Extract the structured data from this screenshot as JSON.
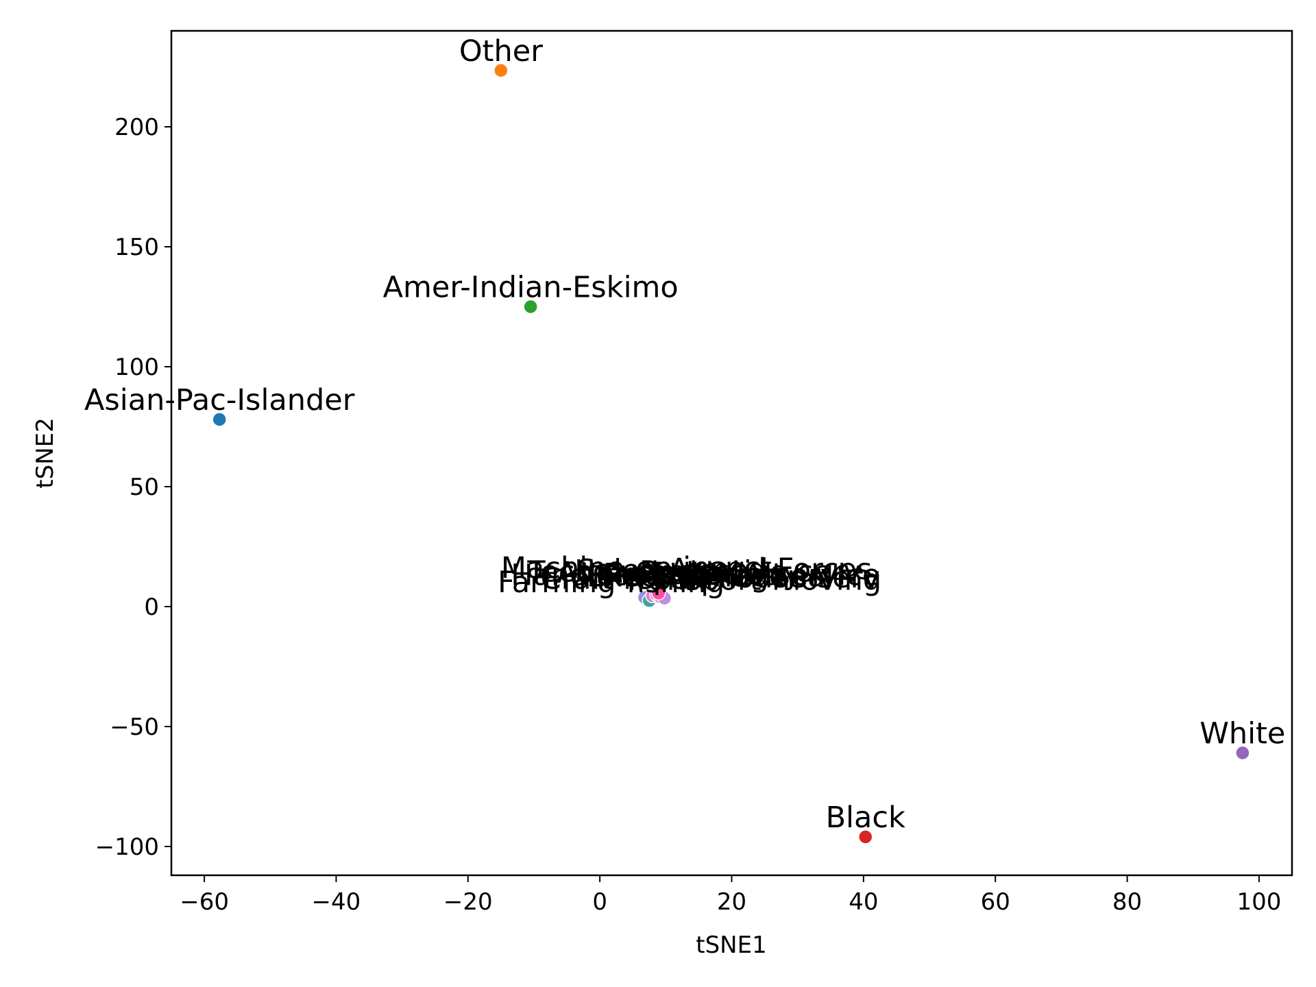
{
  "chart_data": {
    "type": "scatter",
    "title": "",
    "xlabel": "tSNE1",
    "ylabel": "tSNE2",
    "xlim": [
      -65,
      105
    ],
    "ylim": [
      -112,
      240
    ],
    "xticks": [
      -60,
      -40,
      -20,
      0,
      20,
      40,
      60,
      80,
      100
    ],
    "yticks": [
      -100,
      -50,
      0,
      50,
      100,
      150,
      200
    ],
    "xtick_labels": [
      "−60",
      "−40",
      "−20",
      "0",
      "20",
      "40",
      "60",
      "80",
      "100"
    ],
    "ytick_labels": [
      "−100",
      "−50",
      "0",
      "50",
      "100",
      "150",
      "200"
    ],
    "grid": false,
    "points": [
      {
        "label": "Other",
        "x": -15.0,
        "y": 223.5,
        "color": "#ff7f0e"
      },
      {
        "label": "Amer-Indian-Eskimo",
        "x": -10.5,
        "y": 125.0,
        "color": "#2ca02c"
      },
      {
        "label": "Asian-Pac-Islander",
        "x": -57.7,
        "y": 78.0,
        "color": "#1f77b4"
      },
      {
        "label": "White",
        "x": 97.5,
        "y": -61.0,
        "color": "#9467bd"
      },
      {
        "label": "Black",
        "x": 40.3,
        "y": -96.0,
        "color": "#d62728"
      }
    ],
    "cluster_points": [
      {
        "x": 6.8,
        "y": 3.8,
        "color": "#9b8ee8"
      },
      {
        "x": 7.5,
        "y": 2.5,
        "color": "#3aa6a0"
      },
      {
        "x": 8.0,
        "y": 4.5,
        "color": "#e377c2"
      },
      {
        "x": 8.6,
        "y": 5.0,
        "color": "#c58be0"
      },
      {
        "x": 9.2,
        "y": 4.0,
        "color": "#e377c2"
      },
      {
        "x": 9.8,
        "y": 3.5,
        "color": "#c58be0"
      },
      {
        "x": 8.9,
        "y": 5.6,
        "color": "#ff4fa0"
      }
    ],
    "cluster_labels": [
      {
        "text": "Farming-fishing",
        "x": -15.5,
        "y": 6.0
      },
      {
        "text": "Machine-op-inspct",
        "x": -15.0,
        "y": 12.0
      },
      {
        "text": "Handlers-cleaners",
        "x": -13.5,
        "y": 9.0
      },
      {
        "text": "Tech-support",
        "x": -11.0,
        "y": 10.5
      },
      {
        "text": "Craft-repair",
        "x": -9.0,
        "y": 7.5
      },
      {
        "text": "Adm-clerical",
        "x": -6.5,
        "y": 10.0
      },
      {
        "text": "Sales",
        "x": -3.5,
        "y": 11.0
      },
      {
        "text": "Exec-managerial",
        "x": -2.0,
        "y": 8.5
      },
      {
        "text": "Prof-specialty",
        "x": 0.5,
        "y": 9.5
      },
      {
        "text": "Transport-moving",
        "x": 3.5,
        "y": 7.0
      },
      {
        "text": "Protective-serv",
        "x": 6.0,
        "y": 10.5
      },
      {
        "text": "Priv-house-serv",
        "x": 8.0,
        "y": 8.0
      },
      {
        "text": "Armed-Forces",
        "x": 10.5,
        "y": 11.5
      },
      {
        "text": "Other-service",
        "x": 12.5,
        "y": 9.0
      }
    ]
  }
}
